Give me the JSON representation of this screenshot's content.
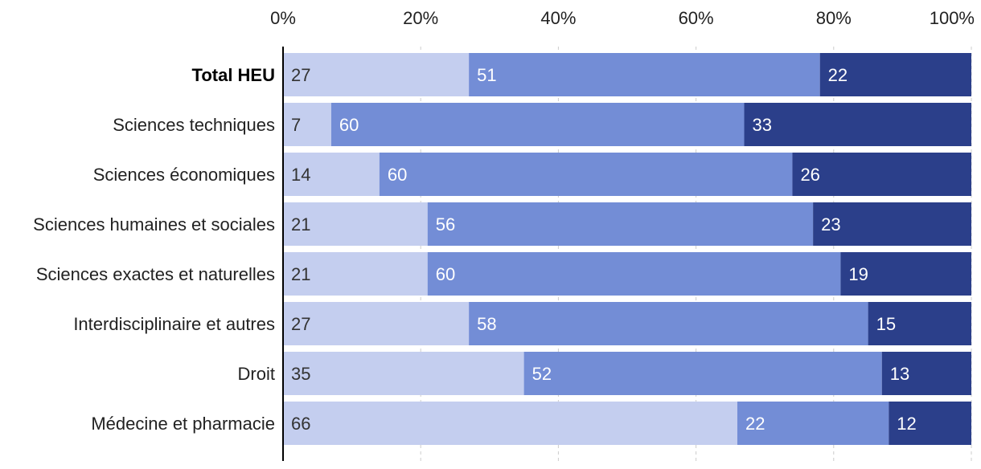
{
  "chart_data": {
    "type": "bar",
    "orientation": "horizontal",
    "stacked": true,
    "normalized_percent": true,
    "title": "",
    "xlabel": "",
    "ylabel": "",
    "xlim": [
      0,
      100
    ],
    "x_ticks": [
      "0%",
      "20%",
      "40%",
      "60%",
      "80%",
      "100%"
    ],
    "x_axis_position": "top",
    "grid": true,
    "legend": "none",
    "categories": [
      "Total HEU",
      "Sciences techniques",
      "Sciences économiques",
      "Sciences humaines et sociales",
      "Sciences exactes et naturelles",
      "Interdisciplinaire et autres",
      "Droit",
      "Médecine et pharmacie"
    ],
    "bold_categories": [
      "Total HEU"
    ],
    "series": [
      {
        "color": "#c4ceef",
        "label_color": "#333333",
        "values": [
          27,
          7,
          14,
          21,
          21,
          27,
          35,
          66
        ]
      },
      {
        "color": "#738dd6",
        "label_color": "#ffffff",
        "values": [
          51,
          60,
          60,
          56,
          60,
          58,
          52,
          22
        ]
      },
      {
        "color": "#2b3f8a",
        "label_color": "#ffffff",
        "values": [
          22,
          33,
          26,
          23,
          19,
          15,
          13,
          12
        ]
      }
    ]
  }
}
